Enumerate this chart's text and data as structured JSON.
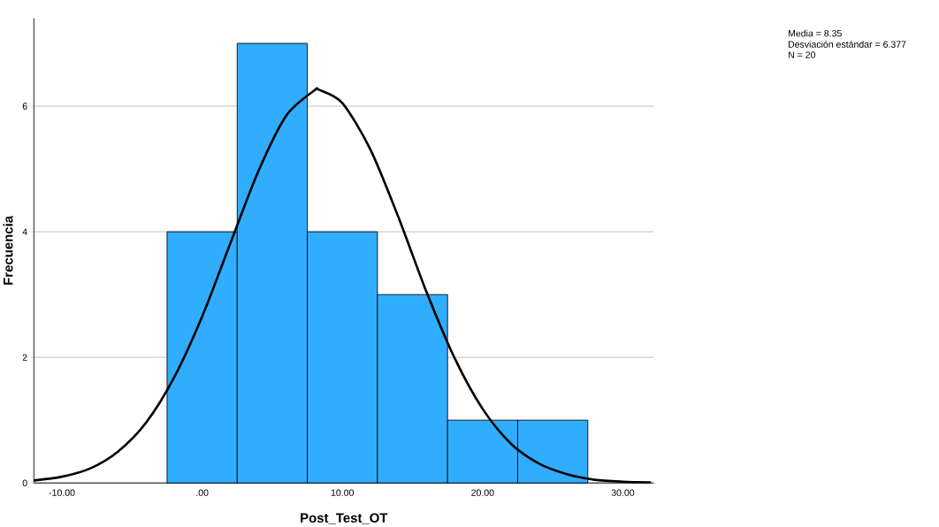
{
  "chart_data": {
    "type": "histogram",
    "xlabel": "Post_Test_OT",
    "ylabel": "Frecuencia",
    "bins": [
      -2.5,
      2.5,
      7.5,
      12.5,
      17.5,
      22.5,
      27.5
    ],
    "values": [
      4,
      7,
      4,
      3,
      1,
      1
    ],
    "color": "#31adff",
    "series": [
      {
        "type": "line",
        "color": "#000000",
        "x": [
          -12,
          -10,
          -8,
          -6,
          -4,
          -2,
          0,
          2,
          4,
          6,
          8,
          8.35,
          10,
          12,
          14,
          16,
          18,
          20,
          22,
          24,
          26,
          28,
          30,
          32
        ],
        "values": [
          0.04,
          0.1,
          0.23,
          0.5,
          0.96,
          1.68,
          2.65,
          3.81,
          4.96,
          5.85,
          6.25,
          6.26,
          6.05,
          5.31,
          4.23,
          3.04,
          1.99,
          1.18,
          0.63,
          0.31,
          0.14,
          0.05,
          0.02,
          0.01
        ]
      }
    ],
    "xlim": [
      -12,
      32.2
    ],
    "ylim": [
      0,
      7.4
    ],
    "xticks": [
      {
        "value": -10,
        "label": "-10.00"
      },
      {
        "value": 0,
        "label": ".00"
      },
      {
        "value": 10,
        "label": "10.00"
      },
      {
        "value": 20,
        "label": "20.00"
      },
      {
        "value": 30,
        "label": "30.00"
      }
    ],
    "yticks": [
      0,
      2,
      4,
      6
    ],
    "grid": "y",
    "annotations": [
      "Media = 8.35",
      "Desviación estándar = 6.377",
      "N = 20"
    ]
  }
}
